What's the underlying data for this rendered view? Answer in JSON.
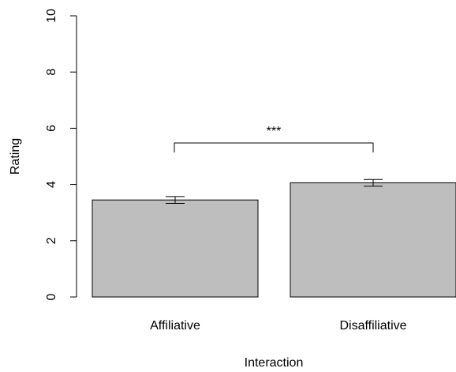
{
  "chart_data": {
    "type": "bar",
    "xlabel": "Interaction",
    "ylabel": "Rating",
    "categories": [
      "Affiliative",
      "Disaffiliative"
    ],
    "values": [
      3.45,
      4.06
    ],
    "error": [
      0.12,
      0.12
    ],
    "ylim": [
      0,
      10
    ],
    "yticks": [
      "0",
      "2",
      "4",
      "6",
      "8",
      "10"
    ],
    "bar_color": "#bebebe",
    "grid": false,
    "significance": {
      "between": [
        "Affiliative",
        "Disaffiliative"
      ],
      "label": "***"
    }
  }
}
